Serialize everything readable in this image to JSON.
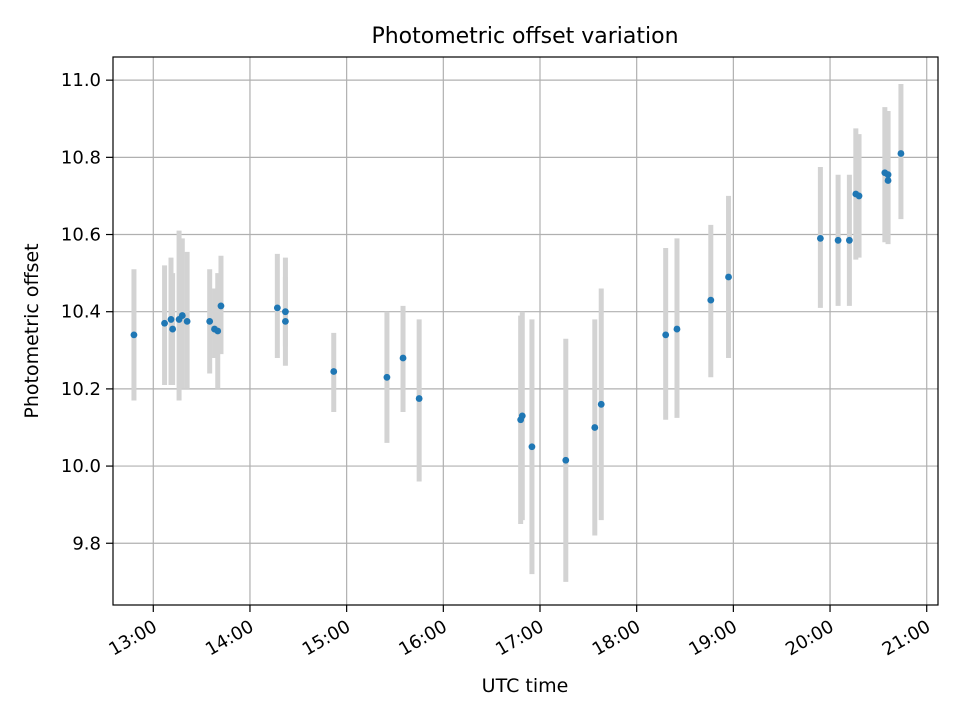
{
  "chart_data": {
    "type": "scatter",
    "title": "Photometric offset variation",
    "xlabel": "UTC time",
    "ylabel": "Photometric offset",
    "x_unit": "UTC time (HH:MM)",
    "xlim": [
      "12:35",
      "21:07"
    ],
    "ylim": [
      9.64,
      11.06
    ],
    "x_ticks": [
      "13:00",
      "14:00",
      "15:00",
      "16:00",
      "17:00",
      "18:00",
      "19:00",
      "20:00",
      "21:00"
    ],
    "y_ticks": [
      "9.8",
      "10.0",
      "10.2",
      "10.4",
      "10.6",
      "10.8",
      "11.0"
    ],
    "grid": true,
    "legend": "none",
    "colors": {
      "point": "#1f77b4",
      "errorbar": "#d3d3d3",
      "grid": "#b0b0b0"
    },
    "points": [
      {
        "x": "12:48",
        "y": 10.34,
        "low": 10.17,
        "high": 10.51
      },
      {
        "x": "13:07",
        "y": 10.37,
        "low": 10.21,
        "high": 10.52
      },
      {
        "x": "13:11",
        "y": 10.38,
        "low": 10.21,
        "high": 10.54
      },
      {
        "x": "13:12",
        "y": 10.355,
        "low": 10.21,
        "high": 10.5
      },
      {
        "x": "13:16",
        "y": 10.38,
        "low": 10.17,
        "high": 10.61
      },
      {
        "x": "13:18",
        "y": 10.39,
        "low": 10.2,
        "high": 10.59
      },
      {
        "x": "13:21",
        "y": 10.375,
        "low": 10.2,
        "high": 10.555
      },
      {
        "x": "13:35",
        "y": 10.375,
        "low": 10.24,
        "high": 10.51
      },
      {
        "x": "13:38",
        "y": 10.355,
        "low": 10.28,
        "high": 10.46
      },
      {
        "x": "13:40",
        "y": 10.35,
        "low": 10.2,
        "high": 10.5
      },
      {
        "x": "13:42",
        "y": 10.415,
        "low": 10.29,
        "high": 10.545
      },
      {
        "x": "14:17",
        "y": 10.41,
        "low": 10.28,
        "high": 10.55
      },
      {
        "x": "14:22",
        "y": 10.4,
        "low": 10.31,
        "high": 10.49
      },
      {
        "x": "14:22",
        "y": 10.375,
        "low": 10.26,
        "high": 10.54
      },
      {
        "x": "14:52",
        "y": 10.245,
        "low": 10.14,
        "high": 10.345
      },
      {
        "x": "15:25",
        "y": 10.23,
        "low": 10.06,
        "high": 10.4
      },
      {
        "x": "15:35",
        "y": 10.28,
        "low": 10.14,
        "high": 10.415
      },
      {
        "x": "15:45",
        "y": 10.175,
        "low": 9.96,
        "high": 10.38
      },
      {
        "x": "16:48",
        "y": 10.12,
        "low": 9.85,
        "high": 10.39
      },
      {
        "x": "16:49",
        "y": 10.13,
        "low": 9.86,
        "high": 10.4
      },
      {
        "x": "16:55",
        "y": 10.05,
        "low": 9.72,
        "high": 10.38
      },
      {
        "x": "17:16",
        "y": 10.015,
        "low": 9.7,
        "high": 10.33
      },
      {
        "x": "17:34",
        "y": 10.1,
        "low": 9.82,
        "high": 10.38
      },
      {
        "x": "17:38",
        "y": 10.16,
        "low": 9.86,
        "high": 10.46
      },
      {
        "x": "18:18",
        "y": 10.34,
        "low": 10.12,
        "high": 10.565
      },
      {
        "x": "18:25",
        "y": 10.355,
        "low": 10.125,
        "high": 10.59
      },
      {
        "x": "18:46",
        "y": 10.43,
        "low": 10.23,
        "high": 10.625
      },
      {
        "x": "18:57",
        "y": 10.49,
        "low": 10.28,
        "high": 10.7
      },
      {
        "x": "19:54",
        "y": 10.59,
        "low": 10.41,
        "high": 10.775
      },
      {
        "x": "20:05",
        "y": 10.585,
        "low": 10.415,
        "high": 10.755
      },
      {
        "x": "20:12",
        "y": 10.585,
        "low": 10.415,
        "high": 10.755
      },
      {
        "x": "20:16",
        "y": 10.705,
        "low": 10.535,
        "high": 10.875
      },
      {
        "x": "20:18",
        "y": 10.7,
        "low": 10.54,
        "high": 10.86
      },
      {
        "x": "20:34",
        "y": 10.76,
        "low": 10.58,
        "high": 10.93
      },
      {
        "x": "20:36",
        "y": 10.74,
        "low": 10.575,
        "high": 10.92
      },
      {
        "x": "20:36",
        "y": 10.755,
        "low": 10.59,
        "high": 10.92
      },
      {
        "x": "20:44",
        "y": 10.81,
        "low": 10.64,
        "high": 10.99
      }
    ]
  }
}
